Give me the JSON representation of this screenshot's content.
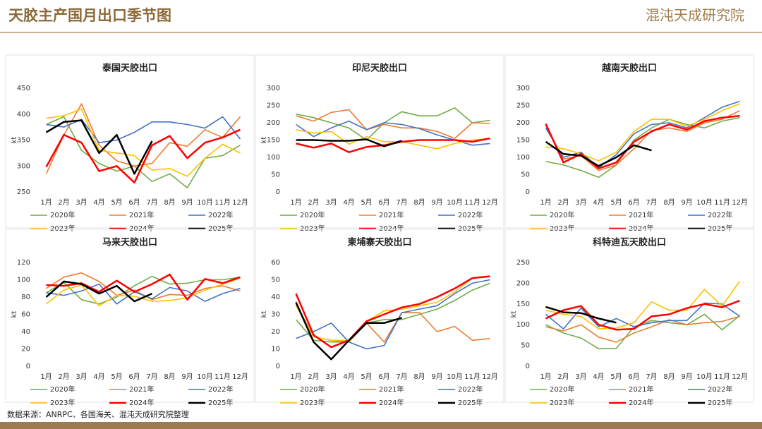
{
  "header": {
    "title": "天胶主产国月出口季节图",
    "logo": "混沌天成研究院"
  },
  "source": "数据来源：ANRPC、各国海关、混沌天成研究院整理",
  "chart_data": [
    {
      "type": "line",
      "title": "泰国天胶出口",
      "y_label": "kt",
      "categories": [
        "1月",
        "2月",
        "3月",
        "4月",
        "5月",
        "6月",
        "7月",
        "8月",
        "9月",
        "10月",
        "11月",
        "12月"
      ],
      "ylim": [
        250,
        450
      ],
      "yticks": [
        250,
        300,
        350,
        400,
        450
      ],
      "series": [
        {
          "name": "2020年",
          "color": "#70ad47",
          "values": [
            380,
            395,
            330,
            305,
            290,
            300,
            270,
            285,
            258,
            315,
            320,
            340
          ]
        },
        {
          "name": "2021年",
          "color": "#ed7d31",
          "values": [
            285,
            360,
            420,
            340,
            310,
            300,
            305,
            345,
            338,
            370,
            355,
            395
          ]
        },
        {
          "name": "2022年",
          "color": "#4472c4",
          "values": [
            380,
            375,
            390,
            345,
            350,
            365,
            385,
            385,
            380,
            373,
            395,
            352
          ]
        },
        {
          "name": "2023年",
          "color": "#ffc000",
          "values": [
            392,
            397,
            410,
            330,
            325,
            320,
            292,
            295,
            280,
            315,
            342,
            325
          ]
        },
        {
          "name": "2024年",
          "color": "#ff0000",
          "values": [
            298,
            360,
            345,
            290,
            300,
            268,
            340,
            358,
            315,
            345,
            355,
            370
          ]
        },
        {
          "name": "2025年",
          "color": "#000000",
          "values": [
            365,
            385,
            388,
            325,
            360,
            285,
            348,
            null,
            null,
            null,
            null,
            null
          ]
        }
      ]
    },
    {
      "type": "line",
      "title": "印尼天胶出口",
      "y_label": "kt",
      "categories": [
        "1月",
        "2月",
        "3月",
        "4月",
        "5月",
        "6月",
        "7月",
        "8月",
        "9月",
        "10月",
        "11月",
        "12月"
      ],
      "ylim": [
        0,
        300
      ],
      "yticks": [
        0,
        50,
        100,
        150,
        200,
        250,
        300
      ],
      "series": [
        {
          "name": "2020年",
          "color": "#70ad47",
          "values": [
            225,
            215,
            200,
            185,
            150,
            200,
            232,
            220,
            220,
            243,
            200,
            207
          ]
        },
        {
          "name": "2021年",
          "color": "#ed7d31",
          "values": [
            220,
            205,
            230,
            238,
            180,
            195,
            185,
            185,
            175,
            155,
            200,
            198
          ]
        },
        {
          "name": "2022年",
          "color": "#4472c4",
          "values": [
            195,
            160,
            185,
            205,
            180,
            200,
            195,
            183,
            165,
            150,
            135,
            140
          ]
        },
        {
          "name": "2023年",
          "color": "#ffc000",
          "values": [
            180,
            170,
            175,
            138,
            160,
            145,
            145,
            135,
            125,
            140,
            150,
            155
          ]
        },
        {
          "name": "2024年",
          "color": "#ff0000",
          "values": [
            140,
            128,
            140,
            115,
            130,
            135,
            145,
            150,
            150,
            150,
            145,
            155
          ]
        },
        {
          "name": "2025年",
          "color": "#000000",
          "values": [
            150,
            150,
            148,
            148,
            152,
            132,
            148,
            null,
            null,
            null,
            null,
            null
          ]
        }
      ]
    },
    {
      "type": "line",
      "title": "越南天胶出口",
      "categories": [
        "1月",
        "2月",
        "3月",
        "4月",
        "5月",
        "6月",
        "7月",
        "8月",
        "9月",
        "10月",
        "11月",
        "12月"
      ],
      "ylim": [
        0,
        300
      ],
      "yticks": [
        0,
        50,
        100,
        150,
        200,
        250,
        300
      ],
      "series": [
        {
          "name": "2020年",
          "color": "#70ad47",
          "values": [
            88,
            78,
            62,
            42,
            78,
            150,
            185,
            210,
            195,
            185,
            205,
            215
          ]
        },
        {
          "name": "2021年",
          "color": "#ed7d31",
          "values": [
            192,
            95,
            105,
            62,
            78,
            125,
            178,
            185,
            175,
            200,
            210,
            235
          ]
        },
        {
          "name": "2022年",
          "color": "#4472c4",
          "values": [
            185,
            100,
            115,
            70,
            108,
            168,
            195,
            200,
            185,
            215,
            245,
            262
          ]
        },
        {
          "name": "2023年",
          "color": "#ffc000",
          "values": [
            130,
            125,
            110,
            90,
            115,
            175,
            210,
            210,
            190,
            210,
            235,
            255
          ]
        },
        {
          "name": "2024年",
          "color": "#ff0000",
          "values": [
            197,
            85,
            110,
            68,
            85,
            145,
            175,
            195,
            180,
            205,
            215,
            220
          ]
        },
        {
          "name": "2025年",
          "color": "#000000",
          "values": [
            145,
            110,
            105,
            75,
            100,
            135,
            120,
            null,
            null,
            null,
            null,
            null
          ]
        }
      ]
    },
    {
      "type": "line",
      "title": "马来天胶出口",
      "y_label": "kt",
      "categories": [
        "1月",
        "2月",
        "3月",
        "4月",
        "5月",
        "6月",
        "7月",
        "8月",
        "9月",
        "10月",
        "11月",
        "12月"
      ],
      "ylim": [
        0,
        120
      ],
      "yticks": [
        0,
        20,
        40,
        60,
        80,
        100,
        120
      ],
      "series": [
        {
          "name": "2020年",
          "color": "#70ad47",
          "values": [
            85,
            97,
            77,
            72,
            80,
            93,
            104,
            95,
            96,
            100,
            100,
            103
          ]
        },
        {
          "name": "2021年",
          "color": "#ed7d31",
          "values": [
            90,
            103,
            108,
            98,
            82,
            88,
            77,
            83,
            82,
            90,
            93,
            87
          ]
        },
        {
          "name": "2022年",
          "color": "#4472c4",
          "values": [
            85,
            82,
            87,
            95,
            72,
            86,
            78,
            91,
            87,
            75,
            84,
            90
          ]
        },
        {
          "name": "2023年",
          "color": "#ffc000",
          "values": [
            72,
            88,
            94,
            70,
            82,
            81,
            75,
            76,
            79,
            88,
            95,
            102
          ]
        },
        {
          "name": "2024年",
          "color": "#ff0000",
          "values": [
            94,
            93,
            96,
            86,
            99,
            86,
            95,
            106,
            77,
            101,
            96,
            103
          ]
        },
        {
          "name": "2025年",
          "color": "#000000",
          "values": [
            80,
            98,
            95,
            84,
            93,
            75,
            84,
            null,
            null,
            null,
            null,
            null
          ]
        }
      ]
    },
    {
      "type": "line",
      "title": "柬埔寨天胶出口",
      "y_label": "kt",
      "categories": [
        "1月",
        "2月",
        "3月",
        "4月",
        "5月",
        "6月",
        "7月",
        "8月",
        "9月",
        "10月",
        "11月",
        "12月"
      ],
      "ylim": [
        0,
        60
      ],
      "yticks": [
        0,
        10,
        20,
        30,
        40,
        50,
        60
      ],
      "series": [
        {
          "name": "2020年",
          "color": "#70ad47",
          "values": [
            27,
            15,
            14,
            14,
            25,
            27,
            27,
            30,
            33,
            38,
            44,
            48
          ]
        },
        {
          "name": "2021年",
          "color": "#ed7d31",
          "values": [
            36,
            17,
            15,
            14,
            25,
            14,
            31,
            31,
            20,
            23,
            15,
            16
          ]
        },
        {
          "name": "2022年",
          "color": "#4472c4",
          "values": [
            16,
            20,
            25,
            14,
            10,
            12,
            31,
            33,
            35,
            42,
            48,
            50
          ]
        },
        {
          "name": "2023年",
          "color": "#ffc000",
          "values": [
            35,
            17,
            15,
            15,
            26,
            32,
            33,
            35,
            37,
            43,
            51,
            52
          ]
        },
        {
          "name": "2024年",
          "color": "#ff0000",
          "values": [
            42,
            18,
            11,
            15,
            26,
            30,
            34,
            36,
            40,
            45,
            51,
            52
          ]
        },
        {
          "name": "2025年",
          "color": "#000000",
          "values": [
            37,
            14,
            4,
            15,
            25,
            25,
            28,
            null,
            null,
            null,
            null,
            null
          ]
        }
      ]
    },
    {
      "type": "line",
      "title": "科特迪瓦天胶出口",
      "y_label": "kt",
      "categories": [
        "1月",
        "2月",
        "3月",
        "4月",
        "5月",
        "6月",
        "7月",
        "8月",
        "9月",
        "10月",
        "11月",
        "12月"
      ],
      "ylim": [
        0,
        250
      ],
      "yticks": [
        0,
        50,
        100,
        150,
        200,
        250
      ],
      "series": [
        {
          "name": "2020年",
          "color": "#70ad47",
          "values": [
            100,
            80,
            68,
            42,
            43,
            95,
            110,
            105,
            100,
            125,
            88,
            122
          ]
        },
        {
          "name": "2021年",
          "color": "#ed7d31",
          "values": [
            95,
            85,
            100,
            70,
            58,
            80,
            95,
            112,
            100,
            105,
            108,
            120
          ]
        },
        {
          "name": "2022年",
          "color": "#4472c4",
          "values": [
            125,
            90,
            140,
            95,
            115,
            95,
            105,
            110,
            110,
            152,
            150,
            120
          ]
        },
        {
          "name": "2023年",
          "color": "#ffc000",
          "values": [
            135,
            125,
            120,
            90,
            92,
            105,
            155,
            135,
            135,
            185,
            145,
            205
          ]
        },
        {
          "name": "2024年",
          "color": "#ff0000",
          "values": [
            115,
            135,
            145,
            100,
            88,
            90,
            120,
            125,
            140,
            150,
            142,
            158
          ]
        },
        {
          "name": "2025年",
          "color": "#000000",
          "values": [
            143,
            130,
            128,
            115,
            105,
            null,
            null,
            null,
            null,
            null,
            null,
            null
          ]
        }
      ]
    }
  ]
}
